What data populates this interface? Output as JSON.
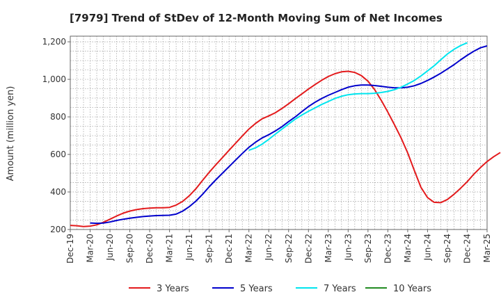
{
  "chart_data": {
    "type": "line",
    "title": "[7979]  Trend of StDev of 12-Month Moving Sum of Net Incomes",
    "ylabel": "Amount (million yen)",
    "xlabel": "",
    "ylim": [
      200,
      1230
    ],
    "yticks": [
      200,
      400,
      600,
      800,
      1000,
      1200
    ],
    "ytick_labels": [
      "200",
      "400",
      "600",
      "800",
      "1,000",
      "1,200"
    ],
    "xticks": [
      "Dec-19",
      "Mar-20",
      "Jun-20",
      "Sep-20",
      "Dec-20",
      "Mar-21",
      "Jun-21",
      "Sep-21",
      "Dec-21",
      "Mar-22",
      "Jun-22",
      "Sep-22",
      "Dec-22",
      "Mar-23",
      "Jun-23",
      "Sep-23",
      "Dec-23",
      "Mar-24",
      "Jun-24",
      "Sep-24",
      "Dec-24",
      "Mar-25"
    ],
    "grid": true,
    "legend_position": "bottom",
    "series": [
      {
        "name": "3 Years",
        "color": "#e31a1c",
        "x_start": "Dec-19",
        "values": [
          222,
          220,
          216,
          218,
          225,
          238,
          255,
          272,
          287,
          298,
          306,
          311,
          314,
          316,
          316,
          318,
          330,
          350,
          380,
          418,
          462,
          505,
          545,
          583,
          622,
          660,
          698,
          735,
          765,
          790,
          805,
          822,
          845,
          870,
          897,
          922,
          948,
          972,
          995,
          1015,
          1030,
          1040,
          1043,
          1037,
          1020,
          990,
          945,
          888,
          825,
          758,
          688,
          608,
          515,
          425,
          370,
          345,
          343,
          360,
          388,
          420,
          455,
          495,
          530,
          562,
          588,
          610
        ]
      },
      {
        "name": "5 Years",
        "color": "#0000cc",
        "x_start": "Mar-20",
        "values": [
          235,
          233,
          234,
          240,
          248,
          255,
          260,
          265,
          269,
          272,
          274,
          275,
          276,
          282,
          298,
          322,
          352,
          388,
          428,
          465,
          500,
          535,
          570,
          605,
          638,
          665,
          688,
          705,
          725,
          748,
          775,
          800,
          828,
          855,
          878,
          898,
          915,
          930,
          945,
          958,
          966,
          970,
          970,
          967,
          963,
          958,
          955,
          955,
          958,
          966,
          978,
          994,
          1012,
          1032,
          1055,
          1078,
          1104,
          1128,
          1150,
          1168,
          1178
        ]
      },
      {
        "name": "7 Years",
        "color": "#00e5ee",
        "x_start": "Mar-22",
        "values": [
          622,
          635,
          655,
          680,
          708,
          735,
          762,
          788,
          810,
          830,
          848,
          866,
          882,
          898,
          910,
          918,
          922,
          924,
          924,
          926,
          930,
          936,
          945,
          958,
          975,
          994,
          1018,
          1045,
          1072,
          1104,
          1135,
          1160,
          1180,
          1195
        ]
      },
      {
        "name": "10 Years",
        "color": "#228b22",
        "x_start": "Dec-24",
        "values": []
      }
    ]
  }
}
